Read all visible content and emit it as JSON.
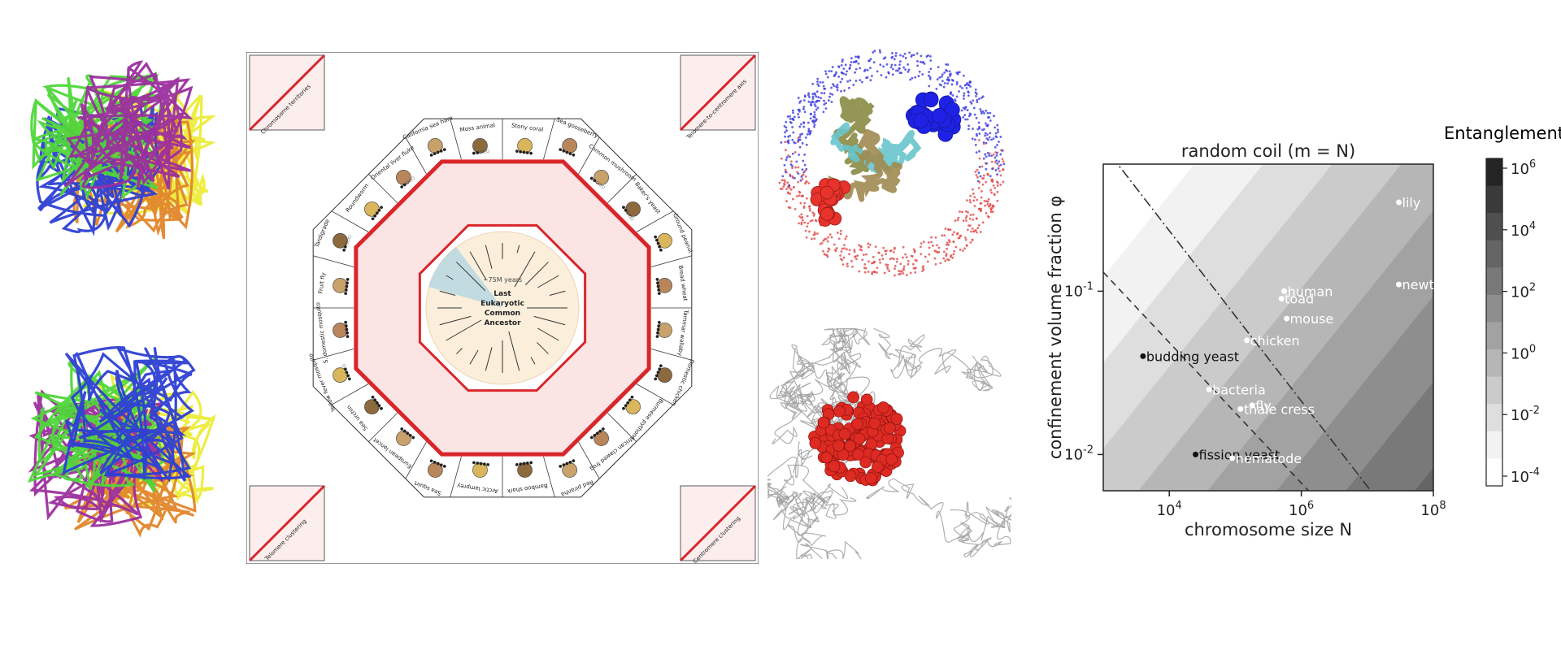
{
  "poster": {
    "center": {
      "title_line1": "Last",
      "title_line2": "Eukaryotic",
      "title_line3": "Common",
      "title_line4": "Ancestor",
      "timescale": "~75M years"
    },
    "organisms": [
      {
        "name": "Tammar wallaby",
        "dots": "●●●●●"
      },
      {
        "name": "Domestic chicken",
        "dots": "●●●●●"
      },
      {
        "name": "Burmese python",
        "dots": "●●●●●"
      },
      {
        "name": "African clawed frog",
        "dots": "●●●●●"
      },
      {
        "name": "Red piranha",
        "dots": "●●●●●"
      },
      {
        "name": "Bamboo shark",
        "dots": "●●●●●"
      },
      {
        "name": "Arctic lamprey",
        "dots": "●●●●●"
      },
      {
        "name": "Sea squirt",
        "dots": "●●●●●"
      },
      {
        "name": "European lancet",
        "dots": "●●●●●"
      },
      {
        "name": "Sea urchin",
        "dots": "●●●●●"
      },
      {
        "name": "Yellow fever mosquito",
        "dots": "●●●●○"
      },
      {
        "name": "S. domestic mosquito",
        "dots": "●●●●●"
      },
      {
        "name": "Fruit fly",
        "dots": "●●●●●"
      },
      {
        "name": "Tardigrade",
        "dots": "●●○○○"
      },
      {
        "name": "Roundworm",
        "dots": "●●●●●"
      },
      {
        "name": "Oriental liver fluke",
        "dots": "●●○○○"
      },
      {
        "name": "California sea hare",
        "dots": "●●●●●"
      },
      {
        "name": "Moss animal",
        "dots": "●●○○○"
      },
      {
        "name": "Stony coral",
        "dots": "●●●●●"
      },
      {
        "name": "Sea gooseberry",
        "dots": "●●●●●"
      },
      {
        "name": "Common mushroom",
        "dots": "●●○○○"
      },
      {
        "name": "Baker's yeast",
        "dots": "●●○○○"
      },
      {
        "name": "Ground peanut",
        "dots": "●●●●●"
      },
      {
        "name": "Bread wheat",
        "dots": "●●●●●"
      }
    ],
    "corners": {
      "top_left": "Chromosome territories",
      "top_right": "Telomere-to-centromere axis",
      "bottom_left": "Telomere clustering",
      "bottom_right": "Centromere clustering"
    }
  },
  "colors": {
    "hic_red": "#d9262b",
    "chain_purple": "#9b2f9e",
    "chain_green": "#4fd63a",
    "chain_orange": "#e2862a",
    "chain_blue": "#2d3fd4",
    "chain_yellow": "#ecec3a",
    "chart_bg": "#ffffff"
  },
  "chart_data": {
    "type": "heatmap",
    "title": "random coil (m = N)",
    "xlabel": "chromosome size N",
    "ylabel": "confinement volume fraction φ",
    "xscale": "log",
    "yscale": "log",
    "xlim": [
      1000,
      100000000
    ],
    "ylim": [
      0.006,
      0.6
    ],
    "x_ticks": [
      "10^4",
      "10^6",
      "10^8"
    ],
    "y_ticks": [
      "10^-2",
      "10^-1"
    ],
    "colorbar": {
      "title": "Entanglement",
      "ticks": [
        "10^6",
        "10^4",
        "10^2",
        "10^0",
        "10^-2",
        "10^-4"
      ],
      "levels": 10
    },
    "points": [
      {
        "label": "lily",
        "N": 30000000,
        "phi": 0.35,
        "color": "white"
      },
      {
        "label": "newt",
        "N": 30000000,
        "phi": 0.11,
        "color": "white"
      },
      {
        "label": "human",
        "N": 550000,
        "phi": 0.1,
        "color": "white"
      },
      {
        "label": "toad",
        "N": 500000,
        "phi": 0.09,
        "color": "white"
      },
      {
        "label": "mouse",
        "N": 600000,
        "phi": 0.068,
        "color": "white"
      },
      {
        "label": "chicken",
        "N": 150000,
        "phi": 0.05,
        "color": "white"
      },
      {
        "label": "budding yeast",
        "N": 4000,
        "phi": 0.04,
        "color": "black"
      },
      {
        "label": "bacteria",
        "N": 40000,
        "phi": 0.025,
        "color": "white"
      },
      {
        "label": "fly",
        "N": 180000,
        "phi": 0.02,
        "color": "white"
      },
      {
        "label": "thale cress",
        "N": 120000,
        "phi": 0.019,
        "color": "white"
      },
      {
        "label": "fission yeast",
        "N": 25000,
        "phi": 0.01,
        "color": "black"
      },
      {
        "label": "nematode",
        "N": 90000,
        "phi": 0.0095,
        "color": "white"
      }
    ]
  }
}
